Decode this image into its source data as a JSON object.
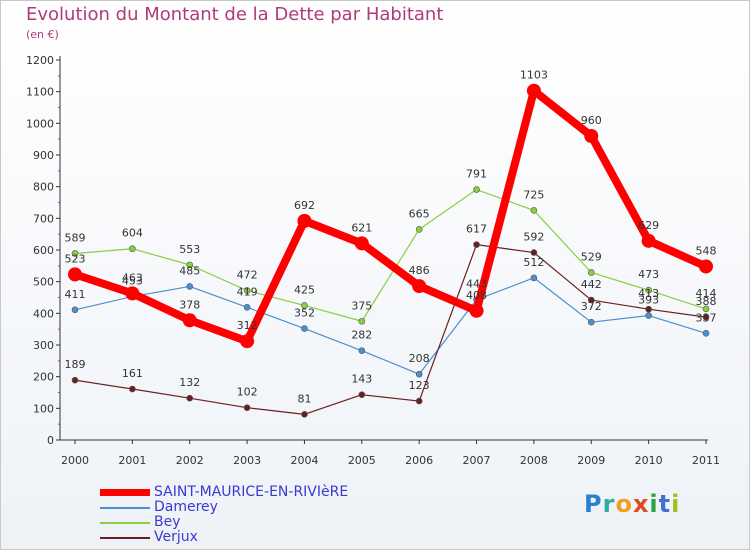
{
  "title": "Evolution du Montant de la Dette par Habitant",
  "subtitle": "(en €)",
  "logo": "Proxiti",
  "chart_data": {
    "type": "line",
    "title": "Evolution du Montant de la Dette par Habitant",
    "ylabel": "(en €)",
    "ylim": [
      0,
      1200
    ],
    "yticks": [
      0,
      100,
      200,
      300,
      400,
      500,
      600,
      700,
      800,
      900,
      1000,
      1100,
      1200
    ],
    "grid": false,
    "legend_position": "bottom-left",
    "categories": [
      "2000",
      "2001",
      "2002",
      "2003",
      "2004",
      "2005",
      "2006",
      "2007",
      "2008",
      "2009",
      "2010",
      "2011"
    ],
    "series": [
      {
        "name": "SAINT-MAURICE-EN-RIVIèRE",
        "color": "#ff0000",
        "values": [
          523,
          463,
          378,
          312,
          692,
          621,
          486,
          408,
          1103,
          960,
          629,
          548
        ]
      },
      {
        "name": "Damerey",
        "color": "#4a90d0",
        "values": [
          411,
          453,
          485,
          419,
          352,
          282,
          208,
          443,
          512,
          372,
          393,
          337
        ]
      },
      {
        "name": "Bey",
        "color": "#88d040",
        "values": [
          589,
          604,
          553,
          472,
          425,
          375,
          665,
          791,
          725,
          529,
          473,
          414
        ]
      },
      {
        "name": "Verjux",
        "color": "#6a2020",
        "values": [
          189,
          161,
          132,
          102,
          81,
          143,
          123,
          617,
          592,
          442,
          413,
          388
        ]
      }
    ],
    "value_labels": [
      [
        "523",
        "463",
        "378",
        "312",
        "692",
        "621",
        "486",
        "408",
        "1103",
        "960",
        "629",
        "548"
      ],
      [
        "411",
        "453",
        "485",
        "419",
        "352",
        "282",
        "208",
        "443",
        "512",
        "372",
        "393",
        "337"
      ],
      [
        "589",
        "604",
        "553",
        "472",
        "425",
        "375",
        "665",
        "791",
        "725",
        "529",
        "473",
        "414"
      ],
      [
        "189",
        "161",
        "132",
        "102",
        "81",
        "143",
        "123",
        "617",
        "592",
        "442",
        "413",
        "388"
      ]
    ]
  }
}
